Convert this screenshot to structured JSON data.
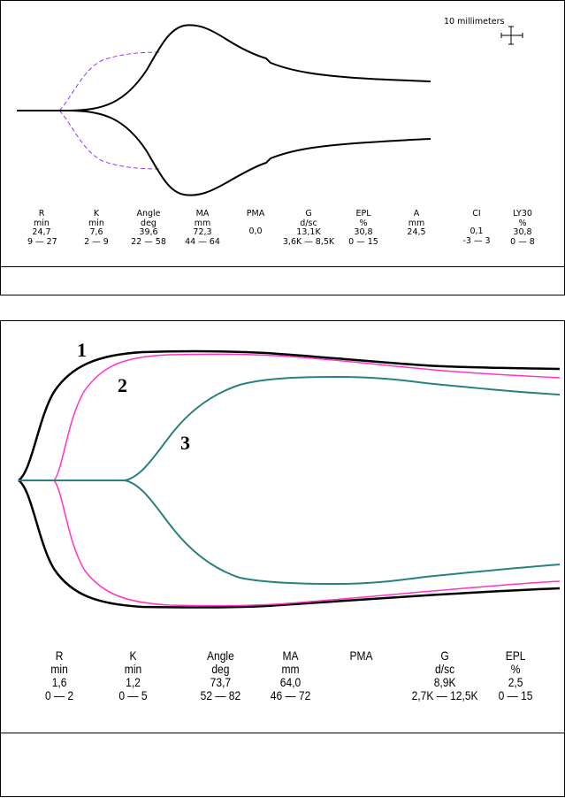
{
  "chart_data": [
    {
      "type": "line",
      "scale_label": "10 millimeters",
      "table_headers": [
        "R",
        "K",
        "Angle",
        "MA",
        "PMA",
        "G",
        "EPL",
        "A",
        "CI",
        "LY30"
      ],
      "table_units": [
        "min",
        "min",
        "deg",
        "mm",
        "",
        "d/sc",
        "%",
        "mm",
        "",
        "%"
      ],
      "table_values": [
        "24,7",
        "7,6",
        "39,6",
        "72,3",
        "0,0",
        "13,1K",
        "30,8",
        "24,5",
        "0,1",
        "30,8"
      ],
      "table_ranges": [
        "9 — 27",
        "2 — 9",
        "22 — 58",
        "44 — 64",
        "",
        "3,6K — 8,5K",
        "0 — 15",
        "",
        "-3 — 3",
        "0 — 8"
      ],
      "series": [
        {
          "color": "#000000",
          "style": "solid"
        },
        {
          "color": "#9b30ff",
          "style": "dashed"
        }
      ]
    },
    {
      "type": "line",
      "series": [
        {
          "name": "1",
          "color": "#000000"
        },
        {
          "name": "2",
          "color": "#ff33cc"
        },
        {
          "name": "3",
          "color": "#2a7f80"
        }
      ],
      "table_headers": [
        "R",
        "K",
        "Angle",
        "MA",
        "PMA",
        "G",
        "EPL"
      ],
      "table_units": [
        "min",
        "min",
        "deg",
        "mm",
        "",
        "d/sc",
        "%"
      ],
      "table_values": [
        "1,6",
        "1,2",
        "73,7",
        "64,0",
        "",
        "8,9K",
        "2,5"
      ],
      "table_ranges": [
        "0 — 2",
        "0 — 5",
        "52 — 82",
        "46 — 72",
        "",
        "2,7K — 12,5K",
        "0 — 15"
      ]
    }
  ]
}
